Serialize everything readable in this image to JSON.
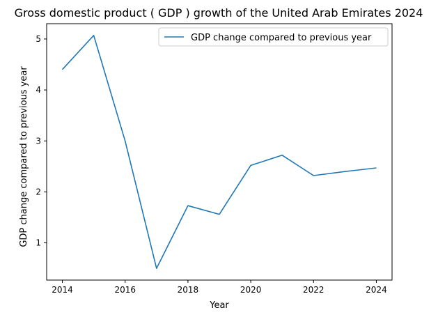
{
  "chart_data": {
    "type": "line",
    "title": "Gross domestic product ( GDP ) growth of the United Arab Emirates 2024",
    "xlabel": "Year",
    "ylabel": "GDP change compared to previous year",
    "x": [
      2014,
      2015,
      2016,
      2017,
      2018,
      2019,
      2020,
      2021,
      2022,
      2023,
      2024
    ],
    "series": [
      {
        "name": "GDP change compared to previous year",
        "color": "#1f77b4",
        "values": [
          4.4,
          5.07,
          3.0,
          0.5,
          1.73,
          1.56,
          2.52,
          2.72,
          2.32,
          2.4,
          2.47
        ]
      }
    ],
    "xticks": [
      2014,
      2016,
      2018,
      2020,
      2022,
      2024
    ],
    "yticks": [
      1,
      2,
      3,
      4,
      5
    ],
    "xlim": [
      2013.5,
      2024.5
    ],
    "ylim": [
      0.27,
      5.3
    ],
    "grid": false,
    "legend_position": "top-right"
  }
}
